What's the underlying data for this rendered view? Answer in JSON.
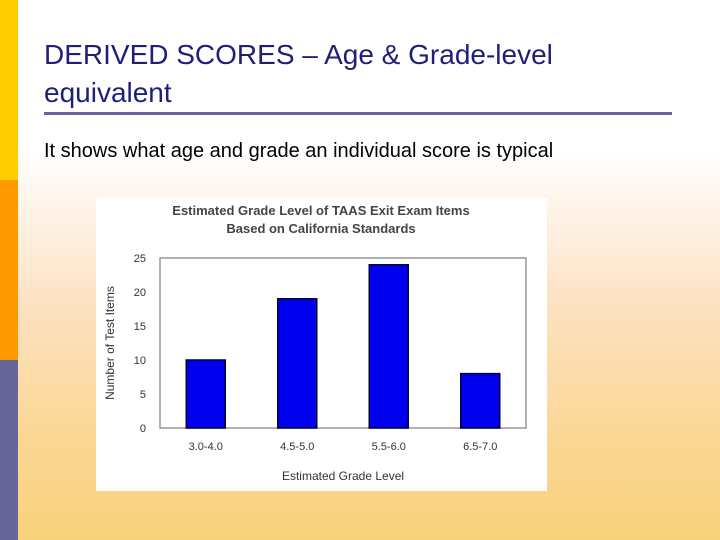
{
  "slide": {
    "title": "DERIVED SCORES – Age & Grade-level equivalent",
    "subtitle": "It shows what age and grade an individual score is typical",
    "colors": {
      "title": "#1f1f7a",
      "bar": "#0000ee",
      "accent_top": "#ffcc00",
      "accent_mid": "#ff9900",
      "accent_bottom": "#666699"
    }
  },
  "chart_data": {
    "type": "bar",
    "title_line1": "Estimated Grade Level of TAAS Exit Exam Items",
    "title_line2": "Based on California Standards",
    "xlabel": "Estimated Grade Level",
    "ylabel": "Number of Test Items",
    "categories": [
      "3.0-4.0",
      "4.5-5.0",
      "5.5-6.0",
      "6.5-7.0"
    ],
    "values": [
      10,
      19,
      24,
      8
    ],
    "ylim": [
      0,
      25
    ],
    "yticks": [
      0,
      5,
      10,
      15,
      20,
      25
    ],
    "grid": false,
    "legend": "none"
  }
}
